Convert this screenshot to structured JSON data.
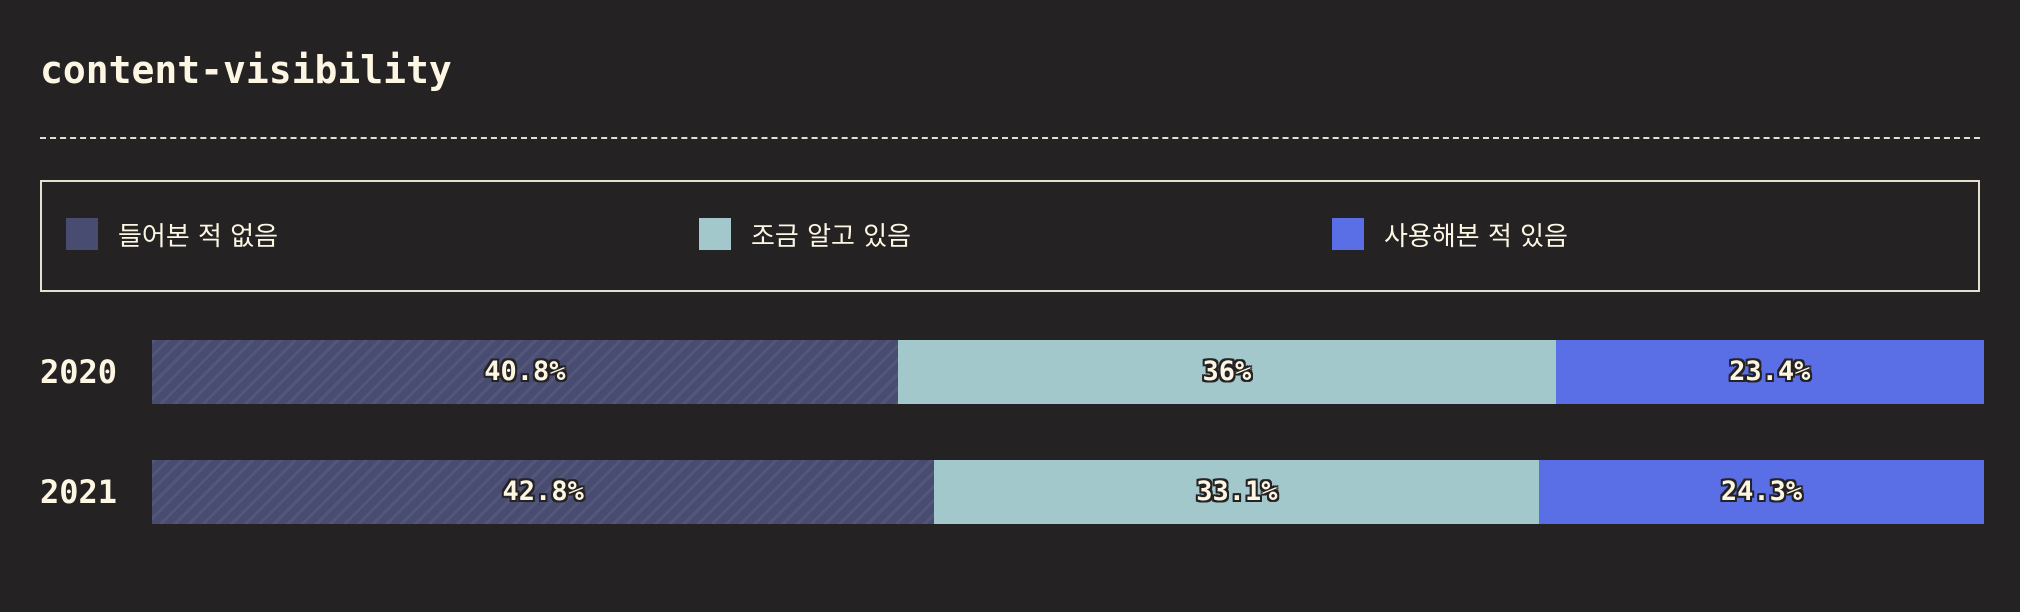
{
  "chart_data": {
    "type": "bar",
    "orientation": "horizontal-stacked-100",
    "title": "content-visibility",
    "categories": [
      "2020",
      "2021"
    ],
    "series": [
      {
        "name": "들어본 적 없음",
        "values": [
          40.8,
          42.8
        ],
        "labels": [
          "40.8%",
          "42.8%"
        ],
        "color": "#484c71"
      },
      {
        "name": "조금 알고 있음",
        "values": [
          36,
          33.1
        ],
        "labels": [
          "36%",
          "33.1%"
        ],
        "color": "#a2c8cb"
      },
      {
        "name": "사용해본 적 있음",
        "values": [
          23.4,
          24.3
        ],
        "labels": [
          "23.4%",
          "24.3%"
        ],
        "color": "#5a6fe6"
      }
    ],
    "xlim": [
      0,
      100
    ],
    "legend_position": "top",
    "grid": false
  }
}
